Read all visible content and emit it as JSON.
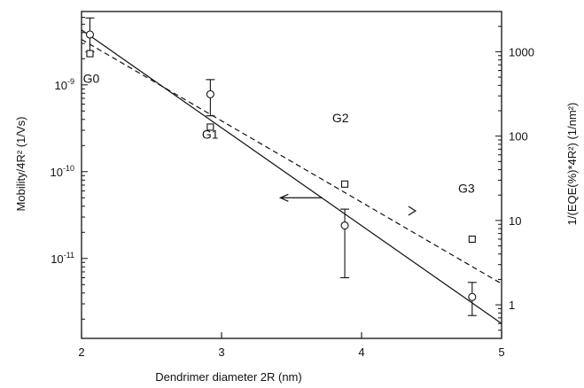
{
  "chart_data": {
    "type": "scatter",
    "title": "",
    "xlabel": "Dendrimer diameter 2R (nm)",
    "ylabel_left": "Mobility/4R² (1/Vs)",
    "ylabel_right": "1/(EQE(%)*4R²) (1/nm²)",
    "xlim": [
      2,
      5
    ],
    "ylim_left": [
      1.2e-12,
      7e-09
    ],
    "ylim_right": [
      0.4,
      3000
    ],
    "y_scale": "log",
    "grid": false,
    "x_ticks": [
      {
        "v": 2,
        "label": "2"
      },
      {
        "v": 3,
        "label": "3"
      },
      {
        "v": 4,
        "label": "4"
      },
      {
        "v": 5,
        "label": "5"
      }
    ],
    "y_left_ticks": [
      {
        "v": 1e-09,
        "base": "10",
        "exp": "-9"
      },
      {
        "v": 1e-10,
        "base": "10",
        "exp": "-10"
      },
      {
        "v": 1e-11,
        "base": "10",
        "exp": "-11"
      }
    ],
    "y_right_ticks": [
      {
        "v": 1000,
        "label": "1000"
      },
      {
        "v": 100,
        "label": "100"
      },
      {
        "v": 10,
        "label": "10"
      },
      {
        "v": 1,
        "label": "1"
      }
    ],
    "series": [
      {
        "marker": "circle",
        "axis": "left",
        "x": [
          2.06,
          2.92,
          3.88,
          4.79
        ],
        "y": [
          3.8e-09,
          7.8e-10,
          2.4e-11,
          3.6e-12
        ],
        "yerr_low": [
          2.4e-09,
          4.4e-10,
          6e-12,
          2.2e-12
        ],
        "yerr_high": [
          5.9e-09,
          1.15e-09,
          3.7e-11,
          5.3e-12
        ]
      },
      {
        "marker": "square",
        "axis": "right",
        "x": [
          2.06,
          2.92,
          3.88,
          4.79
        ],
        "y": [
          950,
          128,
          27,
          6
        ]
      }
    ],
    "fit_lines": [
      {
        "style": "solid",
        "axis": "left",
        "x": [
          2.0,
          5.0
        ],
        "y": [
          4.3e-09,
          1.78e-12
        ]
      },
      {
        "style": "dashed",
        "axis": "right",
        "x": [
          2.0,
          5.0
        ],
        "y": [
          1400,
          1.78
        ]
      }
    ],
    "annotations": [
      {
        "text": "G0",
        "x": 2.01,
        "y_left": 1.05e-09
      },
      {
        "text": "G1",
        "x": 2.86,
        "y_left": 2.4e-10
      },
      {
        "text": "G2",
        "x": 3.79,
        "y_left": 3.7e-10
      },
      {
        "text": "G3",
        "x": 4.69,
        "y_left": 5.7e-11
      }
    ],
    "arrows": [
      {
        "direction": "left",
        "axis": "left",
        "x_from": 3.72,
        "x_to": 3.42,
        "y": 5e-11
      },
      {
        "direction": "right",
        "axis": "right",
        "x": 4.36,
        "y": 13
      }
    ]
  }
}
